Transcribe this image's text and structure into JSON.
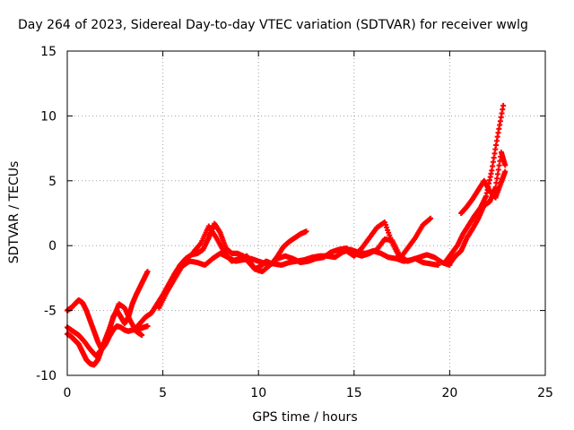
{
  "chart_data": {
    "type": "scatter",
    "title": "Day 264 of 2023, Sidereal Day-to-day VTEC variation (SDTVAR) for receiver wwlg",
    "xlabel": "GPS time / hours",
    "ylabel": "SDTVAR / TECUs",
    "xlim": [
      0,
      25
    ],
    "ylim": [
      -10,
      15
    ],
    "xticks": [
      "0",
      "5",
      "10",
      "15",
      "20",
      "25"
    ],
    "yticks": [
      "-10",
      "-5",
      "0",
      "5",
      "10",
      "15"
    ],
    "grid": true,
    "legend": "none",
    "marker": "plus",
    "color": "#ff0000",
    "series": [
      {
        "x": [
          0.0,
          0.2,
          0.4,
          0.6,
          0.8,
          1.0,
          1.2,
          1.4,
          1.6,
          1.8,
          2.0,
          2.2,
          2.4,
          2.6,
          2.8,
          3.0,
          3.2,
          3.4,
          3.6,
          3.8,
          4.0,
          4.2
        ],
        "y": [
          -5.0,
          -4.8,
          -4.5,
          -4.2,
          -4.4,
          -5.0,
          -5.8,
          -6.6,
          -7.4,
          -8.0,
          -7.6,
          -7.0,
          -6.5,
          -6.2,
          -6.3,
          -6.5,
          -6.6,
          -6.5,
          -6.5,
          -6.4,
          -6.3,
          -6.2
        ]
      },
      {
        "x": [
          0.0,
          0.2,
          0.4,
          0.6,
          0.8,
          1.0,
          1.2,
          1.4,
          1.6,
          1.8,
          2.0,
          2.2,
          2.4,
          2.6,
          2.8,
          3.0,
          3.2,
          3.4,
          3.6,
          3.8,
          4.0,
          4.2
        ],
        "y": [
          -6.8,
          -7.0,
          -7.3,
          -7.6,
          -8.2,
          -8.8,
          -9.1,
          -9.2,
          -8.8,
          -8.0,
          -7.2,
          -6.5,
          -5.5,
          -5.0,
          -5.5,
          -6.0,
          -5.5,
          -4.5,
          -3.8,
          -3.2,
          -2.6,
          -2.0
        ]
      },
      {
        "x": [
          0.0,
          0.3,
          0.6,
          0.9,
          1.2,
          1.5,
          1.8,
          2.1,
          2.4,
          2.7,
          3.0,
          3.3,
          3.6,
          3.9
        ],
        "y": [
          -6.3,
          -6.6,
          -6.9,
          -7.4,
          -8.0,
          -8.5,
          -8.0,
          -6.8,
          -5.6,
          -4.5,
          -4.8,
          -5.8,
          -6.6,
          -6.9
        ]
      },
      {
        "x": [
          3.5,
          3.8,
          4.1,
          4.4,
          4.7,
          5.0,
          5.3,
          5.6,
          5.9,
          6.2,
          6.5,
          6.8,
          7.1,
          7.4,
          7.7,
          8.0,
          8.3,
          8.6,
          8.9,
          9.2,
          9.5,
          9.8,
          10.1,
          10.4,
          10.7,
          11.0,
          11.3,
          11.6,
          11.9,
          12.2,
          12.5
        ],
        "y": [
          -6.5,
          -6.0,
          -5.5,
          -5.2,
          -4.5,
          -3.8,
          -3.0,
          -2.2,
          -1.5,
          -1.0,
          -0.7,
          -0.6,
          -0.3,
          0.6,
          1.7,
          1.0,
          -0.2,
          -0.6,
          -0.6,
          -0.8,
          -1.3,
          -1.8,
          -1.6,
          -1.2,
          -1.4,
          -0.8,
          -0.1,
          0.3,
          0.6,
          0.9,
          1.1
        ]
      },
      {
        "x": [
          4.8,
          5.2,
          5.6,
          6.0,
          6.4,
          6.8,
          7.2,
          7.6,
          8.0,
          8.4,
          8.8,
          9.2,
          9.6,
          10.0,
          10.4,
          10.8,
          11.2,
          11.6,
          12.0,
          12.4,
          12.8,
          13.2,
          13.6,
          14.0,
          14.4,
          14.8,
          15.2,
          15.6,
          16.0,
          16.4,
          16.8,
          17.2,
          17.6,
          18.0,
          18.4,
          18.8,
          19.2,
          19.6,
          20.0
        ],
        "y": [
          -4.8,
          -3.6,
          -2.6,
          -1.6,
          -1.2,
          -1.3,
          -1.5,
          -1.0,
          -0.6,
          -0.9,
          -1.2,
          -1.1,
          -1.0,
          -1.2,
          -1.4,
          -1.4,
          -1.5,
          -1.3,
          -1.2,
          -1.1,
          -0.9,
          -0.8,
          -0.8,
          -0.9,
          -0.5,
          -0.3,
          -0.5,
          -0.6,
          -0.4,
          -0.6,
          -0.9,
          -1.0,
          -1.2,
          -1.1,
          -0.9,
          -0.7,
          -0.9,
          -1.3,
          -1.5
        ]
      },
      {
        "x": [
          6.6,
          7.0,
          7.4,
          7.8,
          8.2,
          8.6,
          9.0,
          9.4,
          9.8,
          10.2,
          10.6,
          11.0,
          11.4,
          11.8,
          12.2,
          12.6,
          13.0,
          13.4,
          13.8,
          14.2,
          14.6,
          15.0,
          15.4,
          15.8,
          16.2,
          16.6,
          17.0,
          17.4,
          17.8,
          18.2,
          18.6,
          19.0,
          19.4
        ],
        "y": [
          -0.5,
          0.2,
          1.5,
          0.6,
          -0.5,
          -1.2,
          -1.0,
          -0.8,
          -1.8,
          -2.0,
          -1.5,
          -1.0,
          -0.8,
          -1.0,
          -1.3,
          -1.2,
          -1.0,
          -0.9,
          -0.5,
          -0.3,
          -0.2,
          -0.6,
          -0.8,
          -0.6,
          -0.3,
          0.5,
          0.4,
          -0.8,
          -1.2,
          -1.0,
          -1.3,
          -1.4,
          -1.5
        ]
      },
      {
        "x": [
          14.6,
          15.0,
          15.4,
          15.8,
          16.2,
          16.6,
          17.0,
          17.4,
          17.8,
          18.2,
          18.6,
          19.0
        ],
        "y": [
          -0.4,
          -0.8,
          -0.2,
          0.6,
          1.4,
          1.8,
          0.2,
          -1.0,
          -0.2,
          0.6,
          1.6,
          2.1
        ]
      },
      {
        "x": [
          19.8,
          20.1,
          20.4,
          20.7,
          21.0,
          21.3,
          21.6,
          21.9,
          22.2,
          22.5,
          22.8
        ],
        "y": [
          -1.2,
          -0.6,
          0.0,
          0.9,
          1.6,
          2.3,
          2.9,
          3.8,
          5.8,
          8.4,
          10.8
        ]
      },
      {
        "x": [
          20.0,
          20.3,
          20.6,
          20.9,
          21.2,
          21.5,
          21.8,
          22.1,
          22.4,
          22.7,
          22.9
        ],
        "y": [
          -1.4,
          -0.8,
          -0.4,
          0.6,
          1.3,
          2.1,
          3.1,
          3.4,
          4.5,
          7.2,
          6.2
        ]
      },
      {
        "x": [
          20.6,
          20.9,
          21.2,
          21.5,
          21.8,
          22.1,
          22.4,
          22.7,
          22.9
        ],
        "y": [
          2.5,
          3.0,
          3.6,
          4.3,
          5.0,
          4.2,
          3.7,
          4.9,
          5.7
        ]
      }
    ]
  }
}
